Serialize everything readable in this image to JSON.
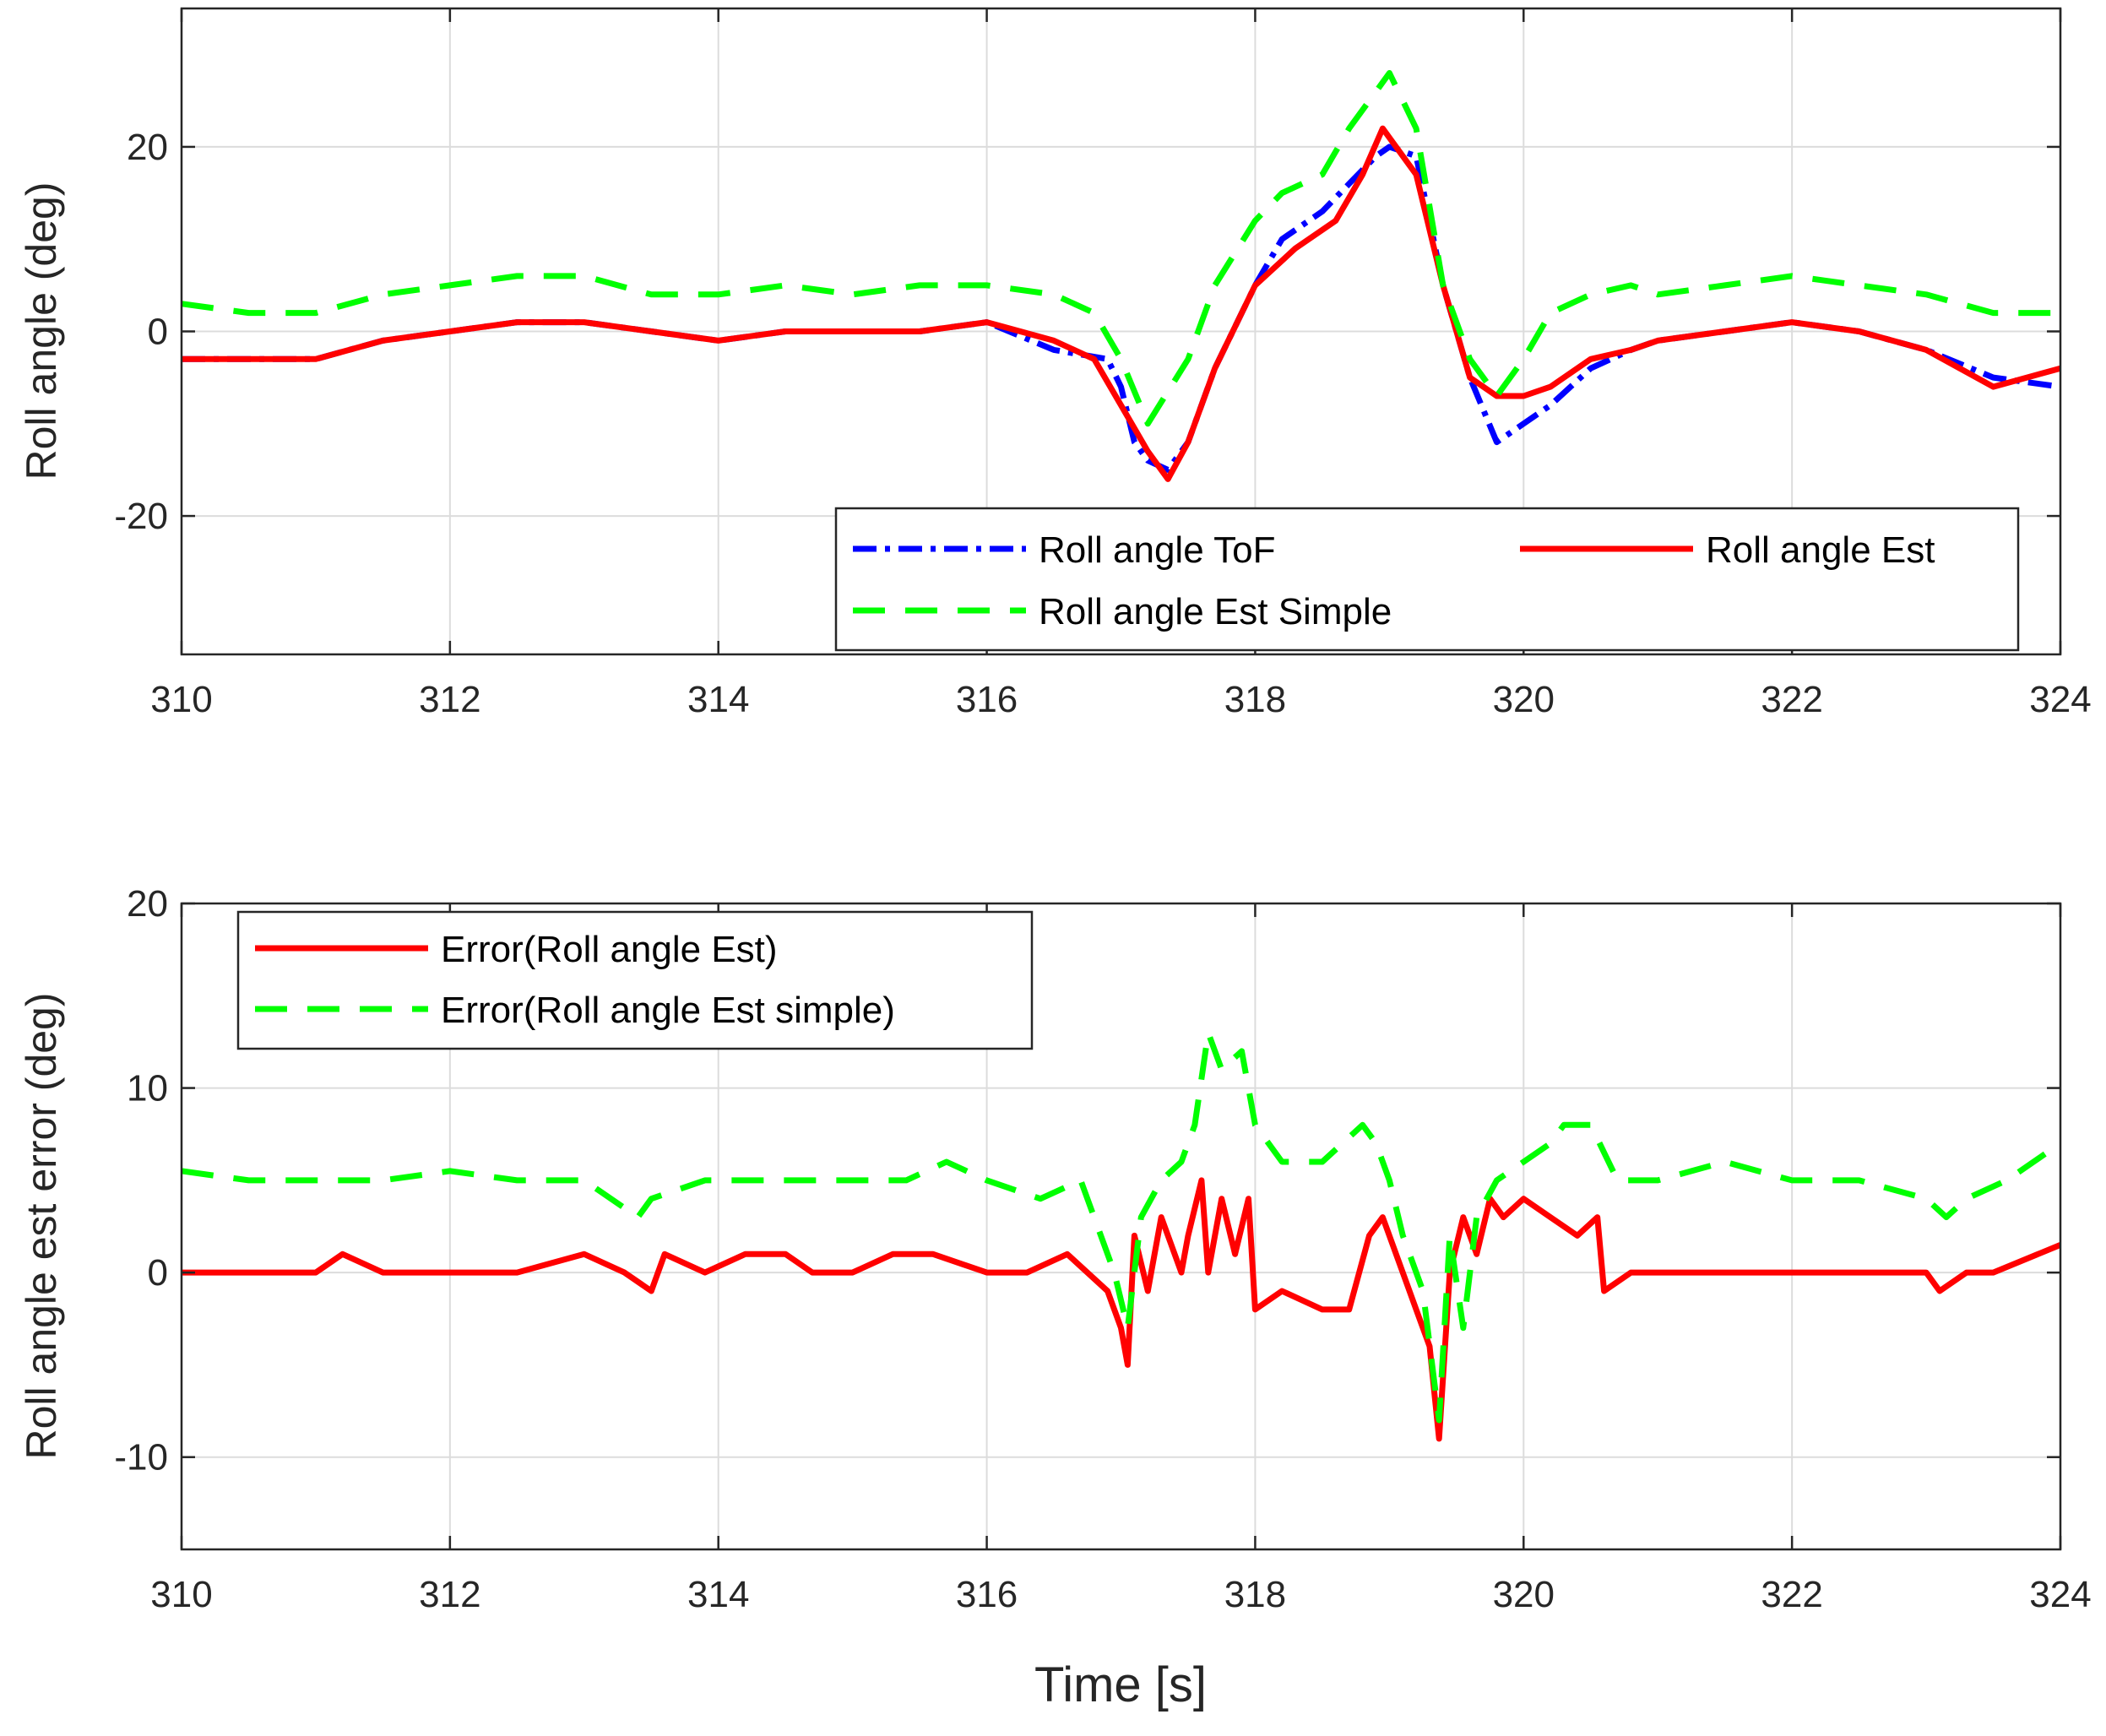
{
  "chart_data": [
    {
      "type": "line",
      "title": "",
      "xlabel": "",
      "ylabel": "Roll angle (deg)",
      "xlim": [
        310,
        324
      ],
      "ylim": [
        -35,
        35
      ],
      "xticks": [
        310,
        312,
        314,
        316,
        318,
        320,
        322,
        324
      ],
      "yticks": [
        -20,
        0,
        20
      ],
      "grid": true,
      "legend": {
        "position": "bottom-right",
        "columns": 2
      },
      "series": [
        {
          "name": "Roll angle ToF",
          "color": "#0000ff",
          "style": "dashdot",
          "x": [
            310.0,
            310.5,
            311.0,
            311.5,
            312.0,
            312.5,
            313.0,
            313.5,
            314.0,
            314.5,
            315.0,
            315.5,
            316.0,
            316.5,
            316.9,
            317.0,
            317.1,
            317.2,
            317.35,
            317.5,
            317.7,
            318.0,
            318.2,
            318.5,
            318.7,
            318.9,
            319.0,
            319.2,
            319.4,
            319.6,
            319.8,
            320.0,
            320.2,
            320.5,
            320.8,
            321.0,
            321.5,
            322.0,
            322.5,
            323.0,
            323.5,
            324.0
          ],
          "y": [
            -3,
            -3,
            -3,
            -1,
            0,
            1,
            1,
            0,
            -1,
            0,
            0,
            0,
            1,
            -2,
            -3,
            -6,
            -12,
            -14,
            -15,
            -12,
            -4,
            5,
            10,
            13,
            16,
            19,
            20,
            19,
            5,
            -5,
            -12,
            -10,
            -8,
            -4,
            -2,
            -1,
            0,
            1,
            0,
            -2,
            -5,
            -6
          ]
        },
        {
          "name": "Roll angle Est",
          "color": "#ff0000",
          "style": "solid",
          "x": [
            310.0,
            310.5,
            311.0,
            311.5,
            312.0,
            312.5,
            313.0,
            313.5,
            314.0,
            314.5,
            315.0,
            315.5,
            316.0,
            316.5,
            316.8,
            317.0,
            317.2,
            317.35,
            317.5,
            317.7,
            318.0,
            318.3,
            318.6,
            318.8,
            318.95,
            319.2,
            319.4,
            319.6,
            319.8,
            320.0,
            320.2,
            320.5,
            320.8,
            321.0,
            321.5,
            322.0,
            322.5,
            323.0,
            323.5,
            324.0
          ],
          "y": [
            -3,
            -3,
            -3,
            -1,
            0,
            1,
            1,
            0,
            -1,
            0,
            0,
            0,
            1,
            -1,
            -3,
            -8,
            -13,
            -16,
            -12,
            -4,
            5,
            9,
            12,
            17,
            22,
            17,
            5,
            -5,
            -7,
            -7,
            -6,
            -3,
            -2,
            -1,
            0,
            1,
            0,
            -2,
            -6,
            -4
          ]
        },
        {
          "name": "Roll angle Est Simple",
          "color": "#00ff00",
          "style": "dashed",
          "x": [
            310.0,
            310.5,
            311.0,
            311.5,
            312.0,
            312.5,
            313.0,
            313.5,
            314.0,
            314.5,
            315.0,
            315.5,
            316.0,
            316.5,
            316.8,
            317.0,
            317.2,
            317.5,
            317.7,
            318.0,
            318.2,
            318.5,
            318.7,
            318.9,
            319.0,
            319.2,
            319.4,
            319.6,
            319.8,
            320.0,
            320.2,
            320.5,
            320.8,
            321.0,
            321.5,
            322.0,
            322.5,
            323.0,
            323.5,
            324.0
          ],
          "y": [
            3,
            2,
            2,
            4,
            5,
            6,
            6,
            4,
            4,
            5,
            4,
            5,
            5,
            4,
            2,
            -3,
            -10,
            -3,
            5,
            12,
            15,
            17,
            22,
            26,
            28,
            22,
            5,
            -3,
            -7,
            -3,
            2,
            4,
            5,
            4,
            5,
            6,
            5,
            4,
            2,
            2
          ]
        }
      ]
    },
    {
      "type": "line",
      "title": "",
      "xlabel": "Time [s]",
      "ylabel": "Roll angle est error (deg)",
      "xlim": [
        310,
        324
      ],
      "ylim": [
        -15,
        20
      ],
      "xticks": [
        310,
        312,
        314,
        316,
        318,
        320,
        322,
        324
      ],
      "yticks": [
        -10,
        0,
        10,
        20
      ],
      "grid": true,
      "legend": {
        "position": "top-left",
        "columns": 1
      },
      "series": [
        {
          "name": "Error(Roll angle Est)",
          "color": "#ff0000",
          "style": "solid",
          "x": [
            310.0,
            310.5,
            311.0,
            311.2,
            311.5,
            312.0,
            312.5,
            313.0,
            313.3,
            313.5,
            313.6,
            313.9,
            314.2,
            314.5,
            314.7,
            315.0,
            315.3,
            315.6,
            316.0,
            316.3,
            316.6,
            316.9,
            317.0,
            317.05,
            317.1,
            317.2,
            317.3,
            317.45,
            317.5,
            317.6,
            317.65,
            317.75,
            317.85,
            317.95,
            318.0,
            318.2,
            318.5,
            318.7,
            318.85,
            318.95,
            319.05,
            319.2,
            319.3,
            319.37,
            319.45,
            319.55,
            319.65,
            319.75,
            319.85,
            320.0,
            320.2,
            320.4,
            320.55,
            320.6,
            320.8,
            321.0,
            321.5,
            322.0,
            322.5,
            323.0,
            323.1,
            323.3,
            323.5,
            324.0
          ],
          "y": [
            0,
            0,
            0,
            1,
            0,
            0,
            0,
            1,
            0,
            -1,
            1,
            0,
            1,
            1,
            0,
            0,
            1,
            1,
            0,
            0,
            1,
            -1,
            -3,
            -5,
            2,
            -1,
            3,
            0,
            2,
            5,
            0,
            4,
            1,
            4,
            -2,
            -1,
            -2,
            -2,
            2,
            3,
            1,
            -2,
            -4,
            -9,
            0,
            3,
            1,
            4,
            3,
            4,
            3,
            2,
            3,
            -1,
            0,
            0,
            0,
            0,
            0,
            0,
            -1,
            0,
            0,
            1.5
          ]
        },
        {
          "name": "Error(Roll angle Est simple)",
          "color": "#00ff00",
          "style": "dashed",
          "x": [
            310.0,
            310.5,
            311.0,
            311.5,
            312.0,
            312.5,
            313.0,
            313.4,
            313.5,
            313.9,
            314.3,
            314.7,
            315.0,
            315.4,
            315.7,
            316.0,
            316.4,
            316.7,
            316.95,
            317.05,
            317.15,
            317.3,
            317.45,
            317.55,
            317.65,
            317.75,
            317.9,
            318.0,
            318.2,
            318.5,
            318.8,
            318.9,
            319.0,
            319.1,
            319.25,
            319.37,
            319.45,
            319.55,
            319.65,
            319.8,
            320.0,
            320.2,
            320.3,
            320.5,
            320.7,
            321.0,
            321.5,
            322.0,
            322.5,
            323.0,
            323.15,
            323.3,
            323.6,
            324.0
          ],
          "y": [
            5.5,
            5,
            5,
            5,
            5.5,
            5,
            5,
            3,
            4,
            5,
            5,
            5,
            5,
            5,
            6,
            5,
            4,
            5,
            0,
            -3,
            3,
            5,
            6,
            8,
            13,
            11,
            12,
            8,
            6,
            6,
            8,
            7,
            5,
            2,
            -1,
            -8,
            2,
            -3,
            3,
            5,
            6,
            7,
            8,
            8,
            5,
            5,
            6,
            5,
            5,
            4,
            3,
            4,
            5,
            7
          ]
        }
      ]
    }
  ]
}
